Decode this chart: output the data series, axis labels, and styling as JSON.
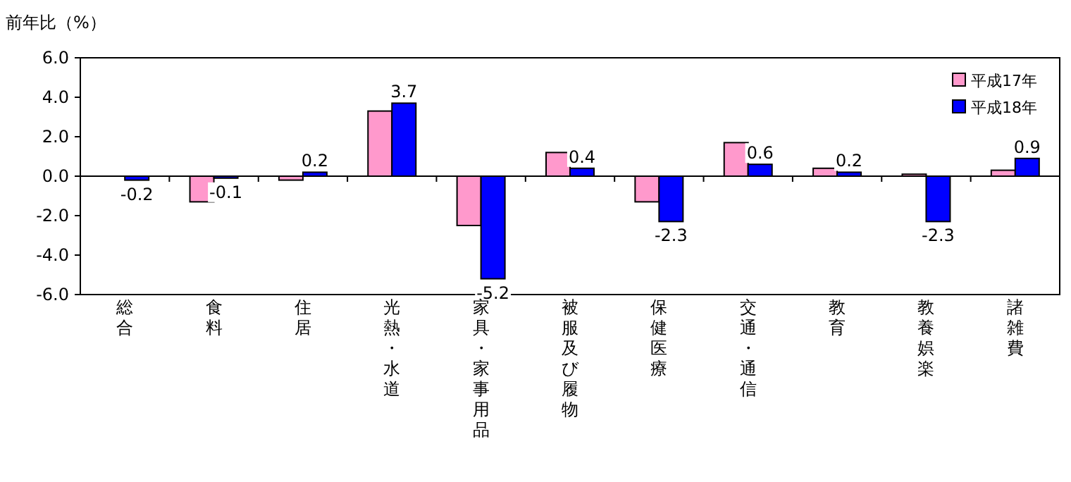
{
  "chart_data": {
    "type": "bar",
    "ylabel": "前年比（%）",
    "categories": [
      "総合",
      "食料",
      "住居",
      "光熱・水道",
      "家具・家事用品",
      "被服及び履物",
      "保健医療",
      "交通・通信",
      "教育",
      "教養娯楽",
      "諸雑費"
    ],
    "series": [
      {
        "name": "平成17年",
        "color": "#ff99cc",
        "values": [
          0.0,
          -1.3,
          -0.2,
          3.3,
          -2.5,
          1.2,
          -1.3,
          1.7,
          0.4,
          0.1,
          0.3
        ]
      },
      {
        "name": "平成18年",
        "color": "#0000ff",
        "values": [
          -0.2,
          -0.1,
          0.2,
          3.7,
          -5.2,
          0.4,
          -2.3,
          0.6,
          0.2,
          -2.3,
          0.9
        ],
        "value_labels": [
          "-0.2",
          "-0.1",
          "0.2",
          "3.7",
          "-5.2",
          "0.4",
          "-2.3",
          "0.6",
          "0.2",
          "-2.3",
          "0.9"
        ]
      }
    ],
    "ylim": [
      -6,
      6
    ],
    "yticks": [
      {
        "value": -6,
        "label": "-6.0"
      },
      {
        "value": -4,
        "label": "-4.0"
      },
      {
        "value": -2,
        "label": "-2.0"
      },
      {
        "value": 0,
        "label": "0.0"
      },
      {
        "value": 2,
        "label": "2.0"
      },
      {
        "value": 4,
        "label": "4.0"
      },
      {
        "value": 6,
        "label": "6.0"
      }
    ],
    "legend": "top right"
  }
}
